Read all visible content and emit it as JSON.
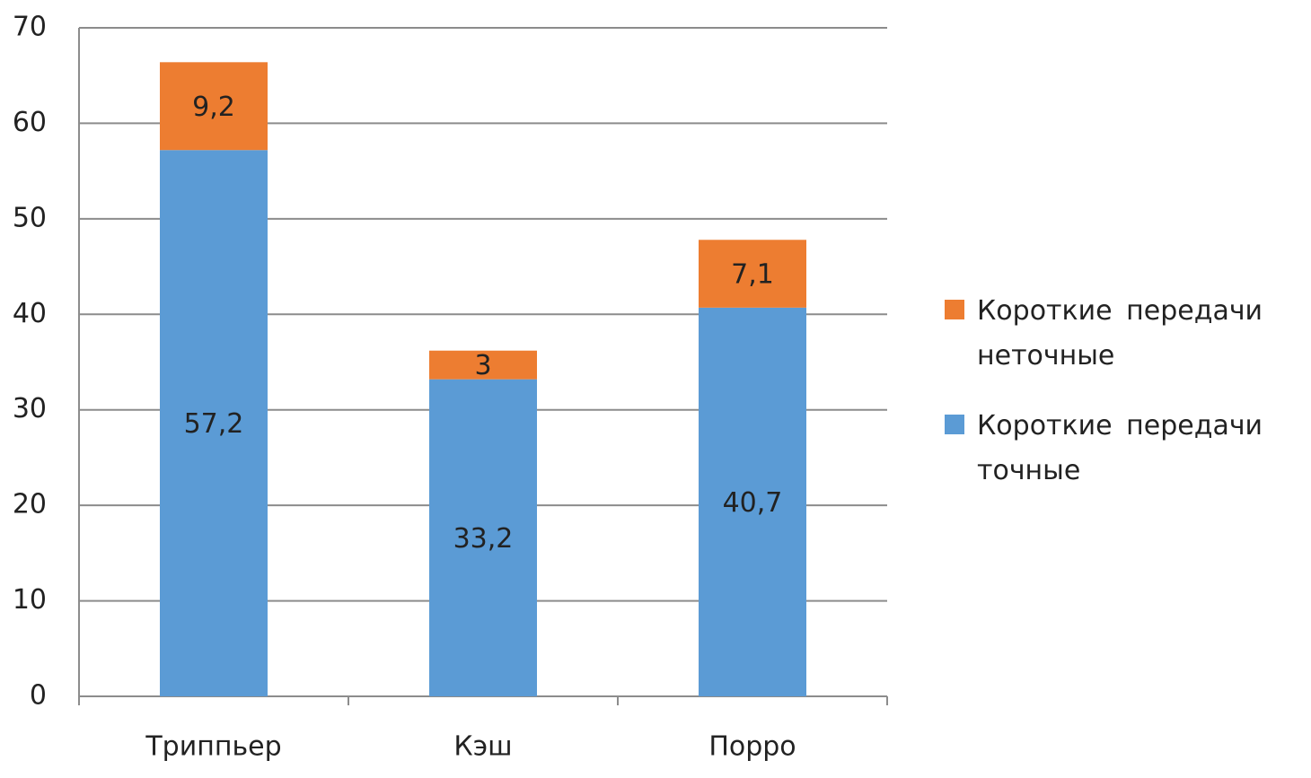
{
  "chart_data": {
    "type": "stacked_bar",
    "categories": [
      "Триппьер",
      "Кэш",
      "Порро"
    ],
    "series": [
      {
        "name": "Короткие передачи точные",
        "color": "#5b9bd5",
        "values": [
          57.2,
          33.2,
          40.7
        ],
        "value_labels": [
          "57,2",
          "33,2",
          "40,7"
        ]
      },
      {
        "name": "Короткие передачи неточные",
        "color": "#ed7d31",
        "values": [
          9.2,
          3,
          7.1
        ],
        "value_labels": [
          "9,2",
          "3",
          "7,1"
        ]
      }
    ],
    "ylim": [
      0,
      70
    ],
    "yticks": [
      0,
      10,
      20,
      30,
      40,
      50,
      60,
      70
    ],
    "grid": true,
    "legend": "right"
  }
}
